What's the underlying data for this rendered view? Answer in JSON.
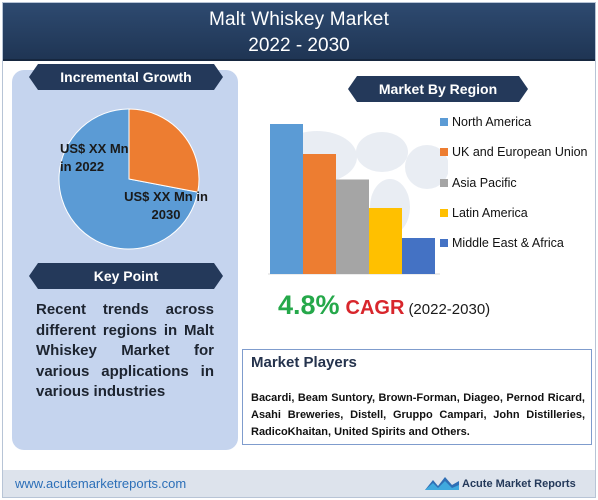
{
  "header": {
    "title": "Malt Whiskey Market",
    "years": "2022 - 2030"
  },
  "incremental_growth": {
    "label": "Incremental Growth",
    "slice_2022_text": "US$ XX Mn in 2022",
    "slice_2030_text": "US$ XX Mn in 2030"
  },
  "key_point": {
    "label": "Key Point",
    "text": "Recent trends across different regions in Malt Whiskey Market for various applications in various industries"
  },
  "market_by_region": {
    "label": "Market By Region"
  },
  "cagr": {
    "value": "4.8%",
    "label": "CAGR",
    "period": "(2022-2030)"
  },
  "market_players": {
    "title": "Market Players",
    "text": "Bacardi, Beam Suntory, Brown-Forman, Diageo, Pernod Ricard, Asahi Breweries, Distell, Gruppo Campari, John Distilleries, RadicoKhaitan, United Spirits and Others."
  },
  "footer": {
    "url": "www.acutemarketreports.com",
    "brand": "Acute Market Reports"
  },
  "colors": {
    "header_bg": "#24395a",
    "panel_bg": "#c5d4ee",
    "cagr_green": "#25a84a",
    "cagr_red": "#d8262c"
  },
  "chart_data": [
    {
      "type": "pie",
      "title": "",
      "slices": [
        {
          "label": "US$ XX Mn in 2030",
          "value": 72,
          "color": "#5b9bd5"
        },
        {
          "label": "US$ XX Mn in 2022",
          "value": 28,
          "color": "#ed7d31"
        }
      ]
    },
    {
      "type": "bar",
      "title": "",
      "categories": [
        "North America",
        "UK and European Union",
        "Asia Pacific",
        "Latin America",
        "Middle East & Africa"
      ],
      "values": [
        100,
        80,
        63,
        44,
        24
      ],
      "colors": [
        "#5b9bd5",
        "#ed7d31",
        "#a5a5a5",
        "#ffc000",
        "#4472c4"
      ],
      "xlabel": "",
      "ylabel": "",
      "ylim": [
        0,
        100
      ],
      "grid": false,
      "legend": "right"
    }
  ]
}
